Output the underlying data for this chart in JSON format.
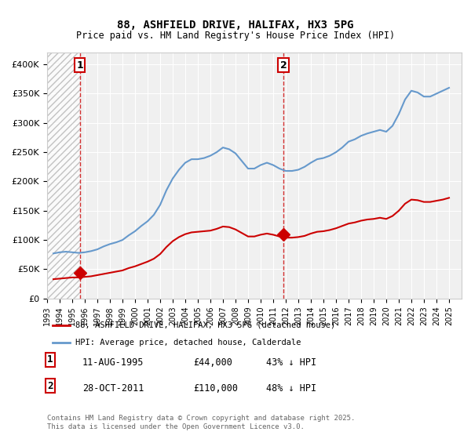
{
  "title1": "88, ASHFIELD DRIVE, HALIFAX, HX3 5PG",
  "title2": "Price paid vs. HM Land Registry's House Price Index (HPI)",
  "ylabel": "",
  "background_color": "#ffffff",
  "plot_bg_color": "#f0f0f0",
  "grid_color": "#ffffff",
  "hpi_color": "#6699cc",
  "price_color": "#cc0000",
  "hatch_color": "#cccccc",
  "legend_label_price": "88, ASHFIELD DRIVE, HALIFAX, HX3 5PG (detached house)",
  "legend_label_hpi": "HPI: Average price, detached house, Calderdale",
  "purchase1_label": "1",
  "purchase1_date": "11-AUG-1995",
  "purchase1_price": "£44,000",
  "purchase1_hpi": "43% ↓ HPI",
  "purchase2_label": "2",
  "purchase2_date": "28-OCT-2011",
  "purchase2_price": "£110,000",
  "purchase2_hpi": "48% ↓ HPI",
  "copyright": "Contains HM Land Registry data © Crown copyright and database right 2025.\nThis data is licensed under the Open Government Licence v3.0.",
  "xmin": 1993.0,
  "xmax": 2026.0,
  "ymin": 0,
  "ymax": 420000,
  "purchase1_x": 1995.6,
  "purchase1_y": 44000,
  "purchase2_x": 2011.83,
  "purchase2_y": 110000,
  "hpi_years": [
    1993.5,
    1994.0,
    1994.5,
    1995.0,
    1995.5,
    1996.0,
    1996.5,
    1997.0,
    1997.5,
    1998.0,
    1998.5,
    1999.0,
    1999.5,
    2000.0,
    2000.5,
    2001.0,
    2001.5,
    2002.0,
    2002.5,
    2003.0,
    2003.5,
    2004.0,
    2004.5,
    2005.0,
    2005.5,
    2006.0,
    2006.5,
    2007.0,
    2007.5,
    2008.0,
    2008.5,
    2009.0,
    2009.5,
    2010.0,
    2010.5,
    2011.0,
    2011.5,
    2012.0,
    2012.5,
    2013.0,
    2013.5,
    2014.0,
    2014.5,
    2015.0,
    2015.5,
    2016.0,
    2016.5,
    2017.0,
    2017.5,
    2018.0,
    2018.5,
    2019.0,
    2019.5,
    2020.0,
    2020.5,
    2021.0,
    2021.5,
    2022.0,
    2022.5,
    2023.0,
    2023.5,
    2024.0,
    2024.5,
    2025.0
  ],
  "hpi_values": [
    77000,
    79000,
    80000,
    79000,
    78000,
    79000,
    81000,
    84000,
    89000,
    93000,
    96000,
    100000,
    108000,
    115000,
    124000,
    132000,
    143000,
    160000,
    185000,
    205000,
    220000,
    232000,
    238000,
    238000,
    240000,
    244000,
    250000,
    258000,
    255000,
    248000,
    235000,
    222000,
    222000,
    228000,
    232000,
    228000,
    222000,
    218000,
    218000,
    220000,
    225000,
    232000,
    238000,
    240000,
    244000,
    250000,
    258000,
    268000,
    272000,
    278000,
    282000,
    285000,
    288000,
    285000,
    295000,
    315000,
    340000,
    355000,
    352000,
    345000,
    345000,
    350000,
    355000,
    360000
  ],
  "price_years": [
    1993.5,
    1994.0,
    1994.5,
    1995.0,
    1995.5,
    1996.0,
    1996.5,
    1997.0,
    1997.5,
    1998.0,
    1998.5,
    1999.0,
    1999.5,
    2000.0,
    2000.5,
    2001.0,
    2001.5,
    2002.0,
    2002.5,
    2003.0,
    2003.5,
    2004.0,
    2004.5,
    2005.0,
    2005.5,
    2006.0,
    2006.5,
    2007.0,
    2007.5,
    2008.0,
    2008.5,
    2009.0,
    2009.5,
    2010.0,
    2010.5,
    2011.0,
    2011.5,
    2012.0,
    2012.5,
    2013.0,
    2013.5,
    2014.0,
    2014.5,
    2015.0,
    2015.5,
    2016.0,
    2016.5,
    2017.0,
    2017.5,
    2018.0,
    2018.5,
    2019.0,
    2019.5,
    2020.0,
    2020.5,
    2021.0,
    2021.5,
    2022.0,
    2022.5,
    2023.0,
    2023.5,
    2024.0,
    2024.5,
    2025.0
  ],
  "price_values": [
    33000,
    34000,
    35000,
    36000,
    36000,
    37000,
    38000,
    40000,
    42000,
    44000,
    46000,
    48000,
    52000,
    55000,
    59000,
    63000,
    68000,
    76000,
    88000,
    98000,
    105000,
    110000,
    113000,
    114000,
    115000,
    116000,
    119000,
    123000,
    122000,
    118000,
    112000,
    106000,
    106000,
    109000,
    111000,
    109000,
    106000,
    104000,
    104000,
    105000,
    107000,
    111000,
    114000,
    115000,
    117000,
    120000,
    124000,
    128000,
    130000,
    133000,
    135000,
    136000,
    138000,
    136000,
    141000,
    150000,
    162000,
    169000,
    168000,
    165000,
    165000,
    167000,
    169000,
    172000
  ],
  "xticks": [
    1993,
    1994,
    1995,
    1996,
    1997,
    1998,
    1999,
    2000,
    2001,
    2002,
    2003,
    2004,
    2005,
    2006,
    2007,
    2008,
    2009,
    2010,
    2011,
    2012,
    2013,
    2014,
    2015,
    2016,
    2017,
    2018,
    2019,
    2020,
    2021,
    2022,
    2023,
    2024,
    2025
  ],
  "yticks": [
    0,
    50000,
    100000,
    150000,
    200000,
    250000,
    300000,
    350000,
    400000
  ],
  "ytick_labels": [
    "£0",
    "£50K",
    "£100K",
    "£150K",
    "£200K",
    "£250K",
    "£300K",
    "£350K",
    "£400K"
  ]
}
